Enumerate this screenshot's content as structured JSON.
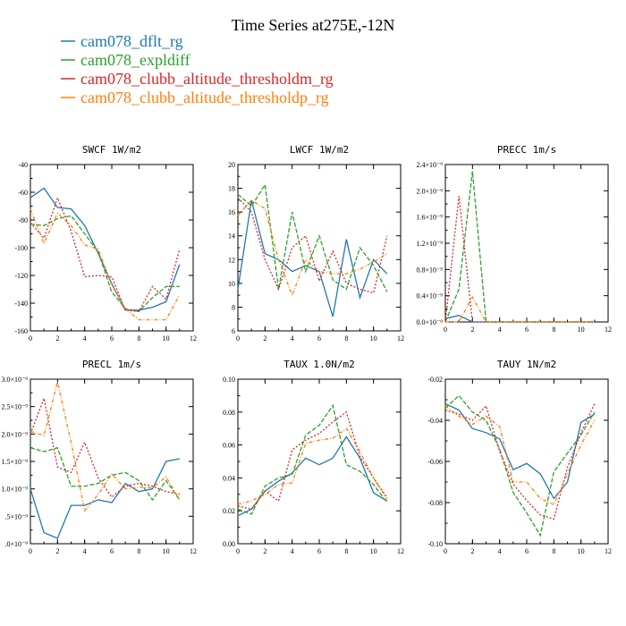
{
  "title": "Time Series at275E,-12N",
  "legend": [
    {
      "name": "cam078_dflt_rg",
      "color": "#1f77b4"
    },
    {
      "name": "cam078_expldiff",
      "color": "#2ca02c"
    },
    {
      "name": "cam078_clubb_altitude_thresholdm_rg",
      "color": "#d62728"
    },
    {
      "name": "cam078_clubb_altitude_thresholdp_rg",
      "color": "#ff7f0e"
    }
  ],
  "chart_data": [
    {
      "type": "line",
      "title": "SWCF  1W/m2",
      "xlim": [
        0,
        12
      ],
      "ylim": [
        -160,
        -40
      ],
      "xticks": [
        "0",
        "2",
        "4",
        "6",
        "8",
        "10",
        "12"
      ],
      "yticks": [
        "-160",
        "-140",
        "-120",
        "-100",
        "-80",
        "-60",
        "-40"
      ],
      "x": [
        0,
        1,
        2,
        3,
        4,
        5,
        6,
        7,
        8,
        9,
        10,
        11
      ],
      "series": [
        {
          "name": "cam078_dflt_rg",
          "values": [
            -64,
            -57,
            -71,
            -72,
            -84,
            -104,
            -126,
            -145,
            -145,
            -143,
            -139,
            -112
          ]
        },
        {
          "name": "cam078_expldiff",
          "values": [
            -83,
            -84,
            -79,
            -77,
            -90,
            -103,
            -132,
            -144,
            -146,
            -136,
            -128,
            -128
          ]
        },
        {
          "name": "cam078_clubb_altitude_thresholdm_rg",
          "values": [
            -82,
            -93,
            -64,
            -88,
            -121,
            -120,
            -121,
            -145,
            -146,
            -128,
            -137,
            -101
          ]
        },
        {
          "name": "cam078_clubb_altitude_thresholdp_rg",
          "values": [
            -72,
            -97,
            -75,
            -84,
            -98,
            -101,
            -127,
            -144,
            -152,
            -152,
            -152,
            -134
          ]
        }
      ]
    },
    {
      "type": "line",
      "title": "LWCF  1W/m2",
      "xlim": [
        0,
        12
      ],
      "ylim": [
        6,
        20
      ],
      "xticks": [
        "0",
        "2",
        "4",
        "6",
        "8",
        "10",
        "12"
      ],
      "yticks": [
        "6",
        "8",
        "10",
        "12",
        "14",
        "16",
        "18",
        "20"
      ],
      "x": [
        0,
        1,
        2,
        3,
        4,
        5,
        6,
        7,
        8,
        9,
        10,
        11
      ],
      "series": [
        {
          "name": "cam078_dflt_rg",
          "values": [
            9.5,
            17,
            12.5,
            12,
            11,
            11.5,
            11,
            7.2,
            13.7,
            8.8,
            12,
            10.8
          ]
        },
        {
          "name": "cam078_expldiff",
          "values": [
            17.5,
            16.5,
            18.3,
            9.5,
            16,
            11,
            14,
            10.3,
            9.5,
            13,
            11.5,
            9.3
          ]
        },
        {
          "name": "cam078_clubb_altitude_thresholdm_rg",
          "values": [
            17.2,
            16,
            12,
            9.5,
            13,
            14,
            10.2,
            12.7,
            10,
            9.5,
            9.2,
            14
          ]
        },
        {
          "name": "cam078_clubb_altitude_thresholdp_rg",
          "values": [
            15.7,
            17,
            16.3,
            12,
            9,
            12,
            11,
            10.8,
            10.8,
            11.2,
            11.8,
            12.5
          ]
        }
      ]
    },
    {
      "type": "line",
      "title": "PRECC  1m/s",
      "xlim": [
        0,
        12
      ],
      "ylim": [
        0,
        2.4
      ],
      "y_scale_label": "x10^-9",
      "xticks": [
        "0",
        "2",
        "4",
        "6",
        "8",
        "10",
        "12"
      ],
      "yticks": [
        "0.0×10⁻⁹",
        "0.4×10⁻⁹",
        "0.8×10⁻⁹",
        "1.2×10⁻⁹",
        "1.6×10⁻⁹",
        "2.0×10⁻⁹",
        "2.4×10⁻⁹"
      ],
      "x": [
        0,
        1,
        2,
        3,
        4,
        5,
        6,
        7,
        8,
        9,
        10,
        11
      ],
      "series": [
        {
          "name": "cam078_dflt_rg",
          "values": [
            0.05,
            0.1,
            0,
            0,
            0,
            0,
            0,
            0,
            0,
            0,
            0,
            0
          ]
        },
        {
          "name": "cam078_expldiff",
          "values": [
            0,
            0.5,
            2.3,
            0,
            0,
            0,
            0,
            0,
            0,
            0,
            0,
            0
          ]
        },
        {
          "name": "cam078_clubb_altitude_thresholdm_rg",
          "values": [
            0,
            1.92,
            0,
            0,
            0,
            0,
            0,
            0,
            0,
            0,
            0,
            0
          ]
        },
        {
          "name": "cam078_clubb_altitude_thresholdp_rg",
          "values": [
            0,
            0,
            0.38,
            0,
            0,
            0,
            0,
            0,
            0,
            0,
            0,
            0
          ]
        }
      ]
    },
    {
      "type": "line",
      "title": "PRECL  1m/s",
      "xlim": [
        0,
        12
      ],
      "ylim": [
        0,
        3.0
      ],
      "y_scale_label": "x10^-9",
      "xticks": [
        "0",
        "2",
        "4",
        "6",
        "8",
        "10",
        "12"
      ],
      "yticks": [
        ".0×10⁻⁹",
        ".5×10⁻⁹",
        "1.0×10⁻⁹",
        "1.5×10⁻⁹",
        "2.0×10⁻⁹",
        "2.5×10⁻⁹",
        "3.0×10⁻⁹"
      ],
      "x": [
        0,
        1,
        2,
        3,
        4,
        5,
        6,
        7,
        8,
        9,
        10,
        11
      ],
      "series": [
        {
          "name": "cam078_dflt_rg",
          "values": [
            1.0,
            0.2,
            0.1,
            0.7,
            0.7,
            0.8,
            0.75,
            1.1,
            0.95,
            1.0,
            1.5,
            1.55
          ]
        },
        {
          "name": "cam078_expldiff",
          "values": [
            1.75,
            1.68,
            1.75,
            1.05,
            1.05,
            1.1,
            1.25,
            1.3,
            1.15,
            0.8,
            1.15,
            0.8
          ]
        },
        {
          "name": "cam078_clubb_altitude_thresholdm_rg",
          "values": [
            2.0,
            2.65,
            1.4,
            1.3,
            1.85,
            1.2,
            0.85,
            1.05,
            1.1,
            1.05,
            0.95,
            0.9
          ]
        },
        {
          "name": "cam078_clubb_altitude_thresholdp_rg",
          "values": [
            2.05,
            1.97,
            2.95,
            1.85,
            0.6,
            0.9,
            1.27,
            1.0,
            1.03,
            1.02,
            1.22,
            0.8
          ]
        }
      ]
    },
    {
      "type": "line",
      "title": "TAUX  1.0N/m2",
      "xlim": [
        0,
        12
      ],
      "ylim": [
        0,
        0.1
      ],
      "xticks": [
        "0",
        "2",
        "4",
        "6",
        "8",
        "10",
        "12"
      ],
      "yticks": [
        "0.00",
        "0.02",
        "0.04",
        "0.06",
        "0.08",
        "0.10"
      ],
      "x": [
        0,
        1,
        2,
        3,
        4,
        5,
        6,
        7,
        8,
        9,
        10,
        11
      ],
      "series": [
        {
          "name": "cam078_dflt_rg",
          "values": [
            0.017,
            0.021,
            0.032,
            0.038,
            0.043,
            0.052,
            0.048,
            0.052,
            0.065,
            0.052,
            0.031,
            0.026
          ]
        },
        {
          "name": "cam078_expldiff",
          "values": [
            0.021,
            0.018,
            0.035,
            0.04,
            0.042,
            0.066,
            0.072,
            0.084,
            0.048,
            0.044,
            0.036,
            0.025
          ]
        },
        {
          "name": "cam078_clubb_altitude_thresholdm_rg",
          "values": [
            0.023,
            0.021,
            0.032,
            0.026,
            0.057,
            0.063,
            0.067,
            0.074,
            0.08,
            0.053,
            0.04,
            0.028
          ]
        },
        {
          "name": "cam078_clubb_altitude_thresholdp_rg",
          "values": [
            0.024,
            0.026,
            0.03,
            0.036,
            0.037,
            0.061,
            0.063,
            0.064,
            0.07,
            0.056,
            0.04,
            0.027
          ]
        }
      ]
    },
    {
      "type": "line",
      "title": "TAUY  1N/m2",
      "xlim": [
        0,
        12
      ],
      "ylim": [
        -0.1,
        -0.02
      ],
      "xticks": [
        "0",
        "2",
        "4",
        "6",
        "8",
        "10",
        "12"
      ],
      "yticks": [
        "-0.10",
        "-0.08",
        "-0.06",
        "-0.04",
        "-0.02"
      ],
      "x": [
        0,
        1,
        2,
        3,
        4,
        5,
        6,
        7,
        8,
        9,
        10,
        11
      ],
      "series": [
        {
          "name": "cam078_dflt_rg",
          "values": [
            -0.032,
            -0.035,
            -0.044,
            -0.046,
            -0.049,
            -0.064,
            -0.061,
            -0.066,
            -0.078,
            -0.07,
            -0.041,
            -0.037
          ]
        },
        {
          "name": "cam078_expldiff",
          "values": [
            -0.034,
            -0.028,
            -0.036,
            -0.04,
            -0.054,
            -0.075,
            -0.085,
            -0.096,
            -0.065,
            -0.056,
            -0.047,
            -0.036
          ]
        },
        {
          "name": "cam078_clubb_altitude_thresholdm_rg",
          "values": [
            -0.035,
            -0.037,
            -0.04,
            -0.033,
            -0.055,
            -0.071,
            -0.079,
            -0.086,
            -0.088,
            -0.063,
            -0.046,
            -0.032
          ]
        },
        {
          "name": "cam078_clubb_altitude_thresholdp_rg",
          "values": [
            -0.033,
            -0.038,
            -0.042,
            -0.038,
            -0.043,
            -0.07,
            -0.07,
            -0.078,
            -0.081,
            -0.066,
            -0.052,
            -0.04
          ]
        }
      ]
    }
  ]
}
